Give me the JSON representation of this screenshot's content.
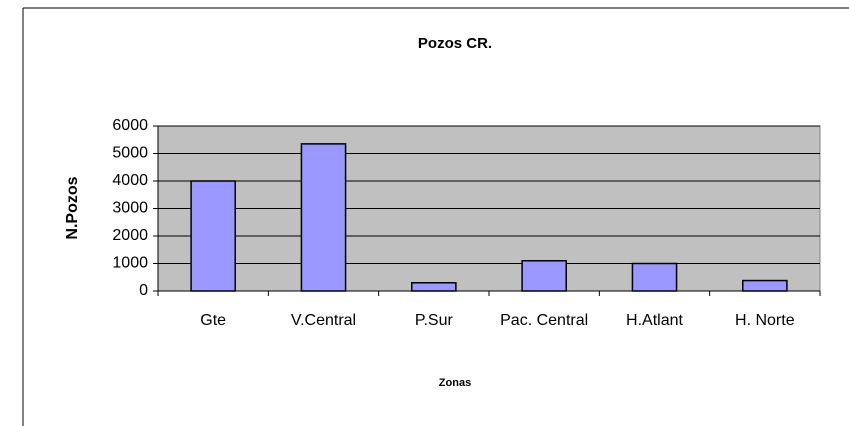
{
  "chart_data": {
    "type": "bar",
    "title": "Pozos CR.",
    "x_label": "Zonas",
    "y_label": "N.Pozos",
    "categories": [
      "Gte",
      "V.Central",
      "P.Sur",
      "Pac. Central",
      "H.Atlant",
      "H. Norte"
    ],
    "values": [
      4000,
      5350,
      300,
      1100,
      1000,
      380
    ],
    "color": "#9999ff",
    "ylim": [
      0,
      6000
    ],
    "yticks": [
      0,
      1000,
      2000,
      3000,
      4000,
      5000,
      6000
    ],
    "grid": true
  }
}
